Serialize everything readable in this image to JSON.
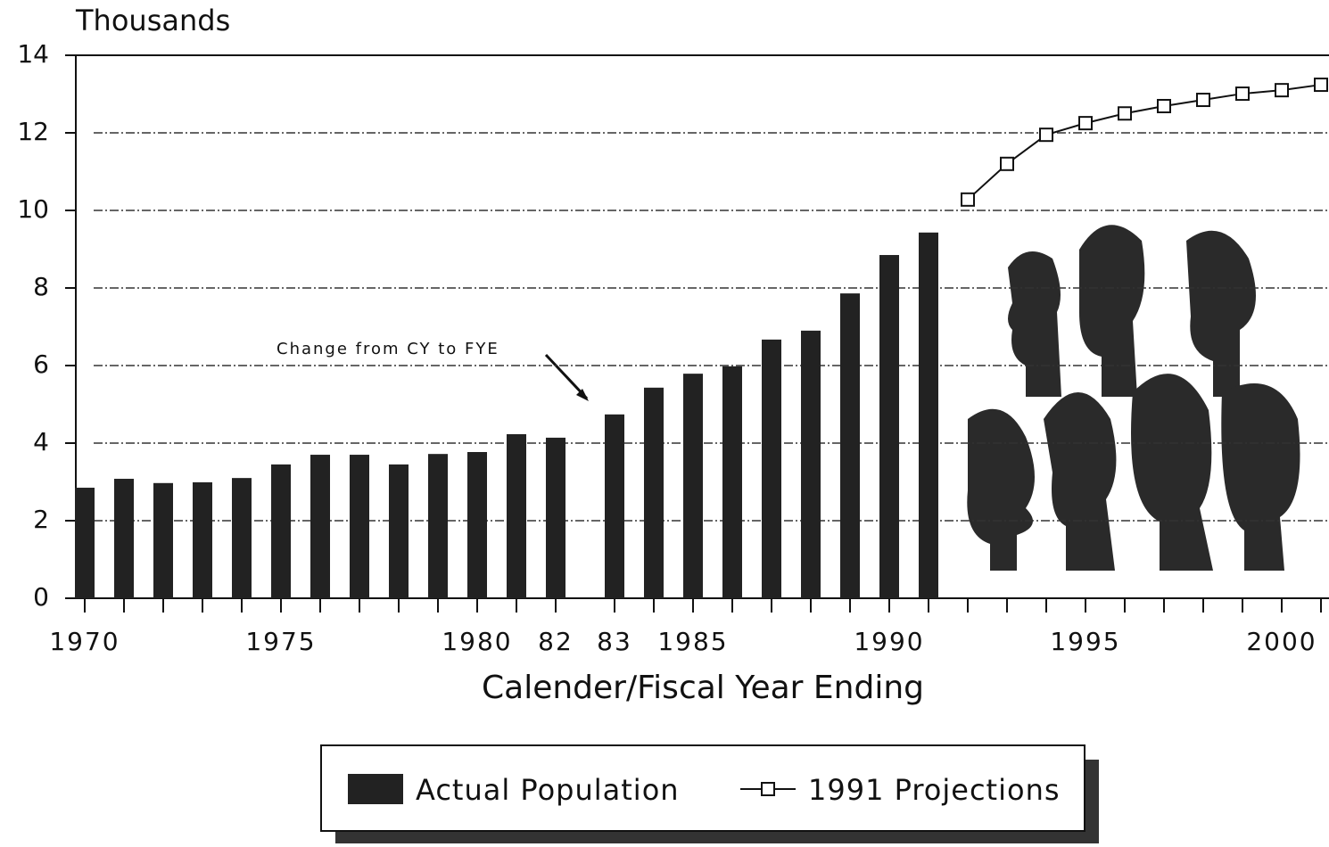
{
  "chart_data": {
    "type": "bar",
    "y_axis_label": "Thousands",
    "x_axis_label": "Calender/Fiscal Year Ending",
    "annotation": "Change from CY to FYE",
    "categories": [
      "1970",
      null,
      null,
      null,
      null,
      "1975",
      null,
      null,
      null,
      null,
      "1980",
      null,
      "82",
      "83",
      null,
      "1985",
      null,
      null,
      null,
      null,
      "1990",
      null,
      null,
      null,
      null,
      "1995",
      null,
      null,
      null,
      null,
      "2000",
      null
    ],
    "series": [
      {
        "name": "Actual Population",
        "type": "bar",
        "color": "#222222",
        "values": [
          2.85,
          3.08,
          2.97,
          2.99,
          3.1,
          3.45,
          3.7,
          3.7,
          3.45,
          3.72,
          3.77,
          4.23,
          4.14,
          4.74,
          5.43,
          5.79,
          5.98,
          6.67,
          6.9,
          7.86,
          8.85,
          9.43,
          null,
          null,
          null,
          null,
          null,
          null,
          null,
          null,
          null,
          null
        ]
      },
      {
        "name": "1991 Projections",
        "type": "line",
        "color": "#111111",
        "values": [
          null,
          null,
          null,
          null,
          null,
          null,
          null,
          null,
          null,
          null,
          null,
          null,
          null,
          null,
          null,
          null,
          null,
          null,
          null,
          null,
          null,
          null,
          10.28,
          11.2,
          11.95,
          12.25,
          12.5,
          12.69,
          12.85,
          13.01,
          13.1,
          13.24
        ]
      }
    ],
    "ylim": [
      0,
      14
    ],
    "yticks": [
      0,
      2,
      4,
      6,
      8,
      10,
      12,
      14
    ],
    "grid": true,
    "legend": "bottom"
  }
}
